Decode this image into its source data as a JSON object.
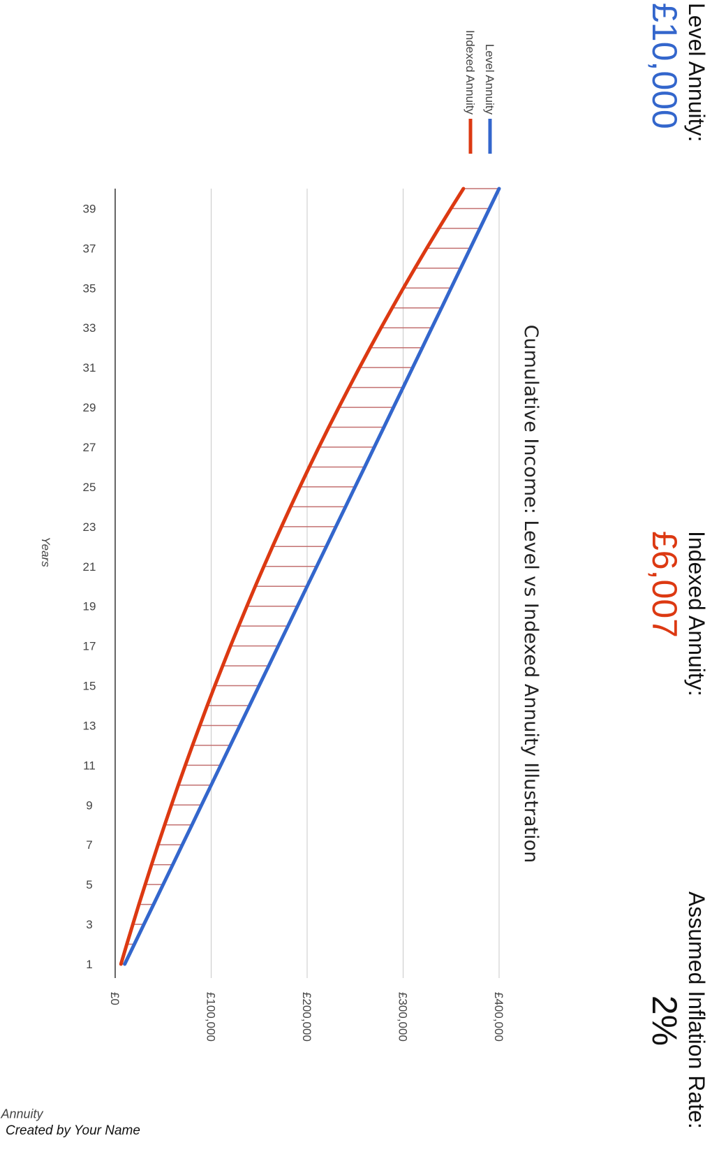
{
  "stats": {
    "level": {
      "label": "Level Annuity:",
      "value": "£10,000",
      "color": "#3366cc"
    },
    "indexed": {
      "label": "Indexed Annuity:",
      "value": "£6,007",
      "color": "#dc3912"
    },
    "inflation": {
      "label": "Assumed Inflation Rate:",
      "value": "2%",
      "color": "#111111"
    }
  },
  "footer": {
    "credit": "Created by Your Name"
  },
  "chart_data": {
    "type": "line",
    "title": "Cumulative Income: Level vs Indexed Annuity Illustration",
    "xlabel": "Years",
    "ylabel": "Annuity",
    "x": [
      1,
      2,
      3,
      4,
      5,
      6,
      7,
      8,
      9,
      10,
      11,
      12,
      13,
      14,
      15,
      16,
      17,
      18,
      19,
      20,
      21,
      22,
      23,
      24,
      25,
      26,
      27,
      28,
      29,
      30,
      31,
      32,
      33,
      34,
      35,
      36,
      37,
      38,
      39,
      40
    ],
    "xticks": [
      "1",
      "3",
      "5",
      "7",
      "9",
      "11",
      "13",
      "15",
      "17",
      "19",
      "21",
      "23",
      "25",
      "27",
      "29",
      "31",
      "33",
      "35",
      "37",
      "39"
    ],
    "yticks": [
      "£0",
      "£100,000",
      "£200,000",
      "£300,000",
      "£400,000"
    ],
    "ylim": [
      0,
      400000
    ],
    "series": [
      {
        "name": "Level Annuity",
        "color": "#3366cc",
        "values": [
          10000,
          20000,
          30000,
          40000,
          50000,
          60000,
          70000,
          80000,
          90000,
          100000,
          110000,
          120000,
          130000,
          140000,
          150000,
          160000,
          170000,
          180000,
          190000,
          200000,
          210000,
          220000,
          230000,
          240000,
          250000,
          260000,
          270000,
          280000,
          290000,
          300000,
          310000,
          320000,
          330000,
          340000,
          350000,
          360000,
          370000,
          380000,
          390000,
          400000
        ]
      },
      {
        "name": "Indexed Annuity",
        "color": "#dc3912",
        "values": [
          6007,
          12134,
          18384,
          24759,
          31262,
          37894,
          44659,
          51560,
          58598,
          65777,
          73100,
          80569,
          88187,
          95958,
          103884,
          111969,
          120215,
          128626,
          137206,
          145957,
          154883,
          163988,
          173275,
          182747,
          192409,
          202264,
          212317,
          222571,
          233030,
          243698,
          254579,
          265678,
          276999,
          288546,
          300324,
          312338,
          324592,
          337091,
          349841,
          362845
        ]
      }
    ],
    "legend_position": "top-right",
    "grid": true
  }
}
